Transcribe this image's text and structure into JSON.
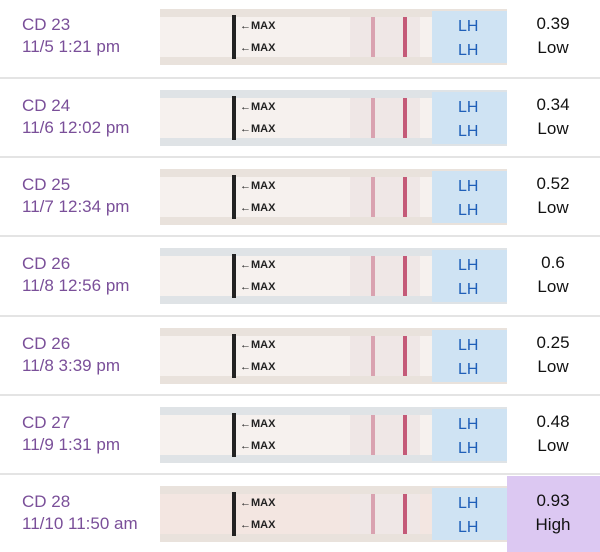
{
  "strip": {
    "max_label": "←MAX",
    "brand": "LH"
  },
  "entries": [
    {
      "cycle_day": "CD 23",
      "time": "11/5 1:21 pm",
      "value": "0.39",
      "level": "Low"
    },
    {
      "cycle_day": "CD 24",
      "time": "11/6 12:02 pm",
      "value": "0.34",
      "level": "Low"
    },
    {
      "cycle_day": "CD 25",
      "time": "11/7 12:34 pm",
      "value": "0.52",
      "level": "Low"
    },
    {
      "cycle_day": "CD 26",
      "time": "11/8 12:56 pm",
      "value": "0.6",
      "level": "Low"
    },
    {
      "cycle_day": "CD 26",
      "time": "11/8 3:39 pm",
      "value": "0.25",
      "level": "Low"
    },
    {
      "cycle_day": "CD 27",
      "time": "11/9 1:31 pm",
      "value": "0.48",
      "level": "Low"
    },
    {
      "cycle_day": "CD 28",
      "time": "11/10 11:50 am",
      "value": "0.93",
      "level": "High"
    }
  ]
}
